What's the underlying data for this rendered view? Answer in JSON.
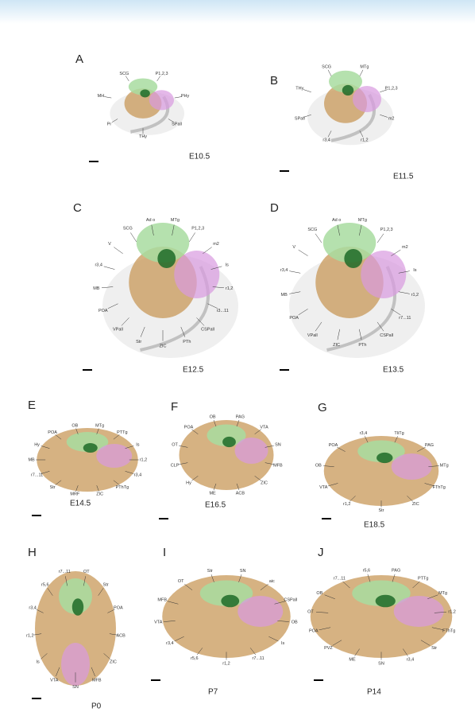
{
  "figure": {
    "panels": [
      {
        "letter": "A",
        "stage": "E10.5",
        "labels": [
          "P1,2,3",
          "PHy",
          "SPall",
          "THy",
          "Pr",
          "MH",
          "SCG"
        ]
      },
      {
        "letter": "B",
        "stage": "E11.5",
        "labels": [
          "MTg",
          "P1,2,3",
          "m2",
          "r1,2",
          "r3,4",
          "SPall",
          "THy",
          "SCG"
        ]
      },
      {
        "letter": "C",
        "stage": "E12.5",
        "labels": [
          "MTg",
          "P1,2,3",
          "m2",
          "Is",
          "r1,2",
          "r3...11",
          "CSPall",
          "PTh",
          "ZIC",
          "Str",
          "VPall",
          "POA",
          "MB",
          "r3,4",
          "V",
          "SCG",
          "Ad o"
        ]
      },
      {
        "letter": "D",
        "stage": "E13.5",
        "labels": [
          "MTg",
          "P1,2,3",
          "m2",
          "Is",
          "r1,2",
          "r7...11",
          "CSPall",
          "PTh",
          "ZIC",
          "VPall",
          "POA",
          "MB",
          "r3,4",
          "V",
          "SCG",
          "Ad o"
        ]
      },
      {
        "letter": "E",
        "stage": "E14.5",
        "labels": [
          "MTg",
          "PTTg",
          "Is",
          "r1,2",
          "r3,4",
          "PThTg",
          "ZIC",
          "MRF",
          "Str",
          "r7...11",
          "MB",
          "Hy",
          "POA",
          "OB"
        ]
      },
      {
        "letter": "F",
        "stage": "E16.5",
        "labels": [
          "PAG",
          "VTA",
          "SN",
          "MFB",
          "ZIC",
          "ACB",
          "ME",
          "Hy",
          "CLP",
          "OT",
          "POA",
          "OB"
        ]
      },
      {
        "letter": "G",
        "stage": "E18.5",
        "labels": [
          "TliTg",
          "PAG",
          "MTg",
          "FThTg",
          "ZIC",
          "Str",
          "r1,2",
          "VTA",
          "OB",
          "POA",
          "r3,4"
        ]
      },
      {
        "letter": "H",
        "stage": "P0",
        "labels": [
          "OT",
          "Str",
          "POA",
          "ACB",
          "ZIC",
          "MFB",
          "SN",
          "VTA",
          "Is",
          "r1,2",
          "r3,4",
          "r5,6",
          "r7...11"
        ]
      },
      {
        "letter": "I",
        "stage": "P7",
        "labels": [
          "SN",
          "aic",
          "CSPall",
          "OB",
          "Is",
          "r7...11",
          "r1,2",
          "r5,6",
          "r3,4",
          "VTA",
          "MFB",
          "OT",
          "Str"
        ]
      },
      {
        "letter": "J",
        "stage": "P14",
        "labels": [
          "PAG",
          "PTTg",
          "MTg",
          "r1,2",
          "FThTg",
          "Str",
          "r3,4",
          "SN",
          "ME",
          "PVZ",
          "POA",
          "OT",
          "OB",
          "r7...11",
          "r5,6"
        ]
      }
    ]
  }
}
